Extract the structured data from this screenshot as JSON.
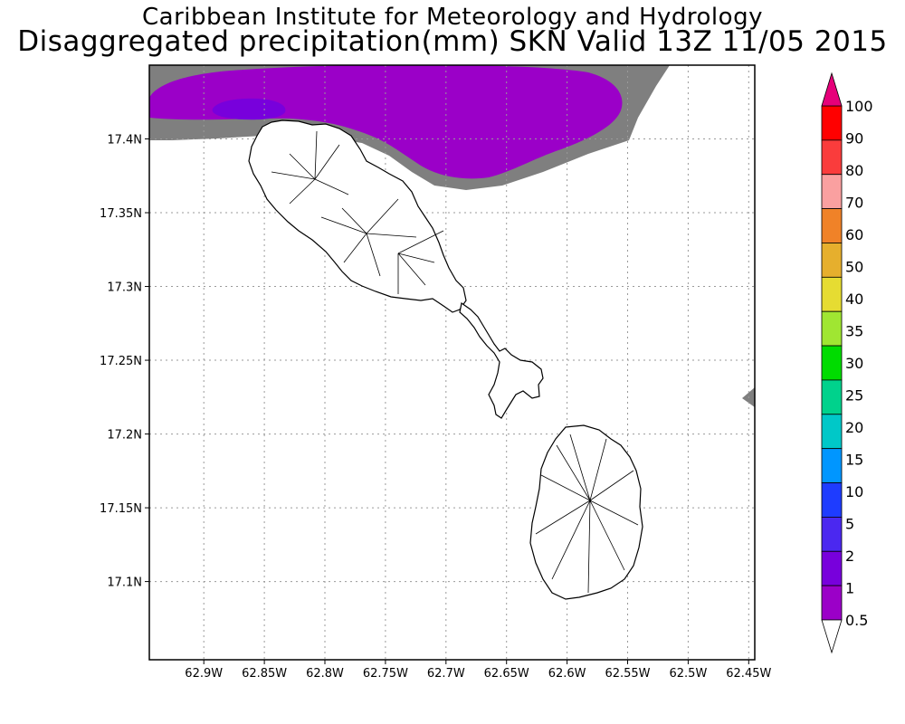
{
  "header": {
    "title_line1": "Caribbean Institute for Meteorology and Hydrology",
    "title_line2": "Disaggregated precipitation(mm) SKN Valid 13Z 11/05 2015"
  },
  "map": {
    "lon_range": [
      -62.945,
      -62.445
    ],
    "lat_range": [
      17.047,
      17.45
    ],
    "x_ticks": [
      "62.9W",
      "62.85W",
      "62.8W",
      "62.75W",
      "62.7W",
      "62.65W",
      "62.6W",
      "62.55W",
      "62.5W",
      "62.45W"
    ],
    "x_tick_values": [
      -62.9,
      -62.85,
      -62.8,
      -62.75,
      -62.7,
      -62.65,
      -62.6,
      -62.55,
      -62.5,
      -62.45
    ],
    "y_ticks": [
      "17.4N",
      "17.35N",
      "17.3N",
      "17.25N",
      "17.2N",
      "17.15N",
      "17.1N"
    ],
    "y_tick_values": [
      17.4,
      17.35,
      17.3,
      17.25,
      17.2,
      17.15,
      17.1
    ],
    "grid": true,
    "land_outline_color": "#000000",
    "islands": [
      "St. Kitts",
      "Nevis"
    ]
  },
  "colorbar": {
    "labels": [
      "0.5",
      "1",
      "2",
      "5",
      "10",
      "15",
      "20",
      "25",
      "30",
      "35",
      "40",
      "50",
      "60",
      "70",
      "80",
      "90",
      "100"
    ],
    "colors": [
      "#7f7f7f",
      "#9b00c8",
      "#7800dc",
      "#4b28f0",
      "#1e3cff",
      "#0096ff",
      "#00c8c8",
      "#00d28c",
      "#00dc00",
      "#a0e632",
      "#e6dc32",
      "#e6af2d",
      "#f08228",
      "#faa0a0",
      "#fa3c3c",
      "#ff0000",
      "#e6007a"
    ]
  }
}
